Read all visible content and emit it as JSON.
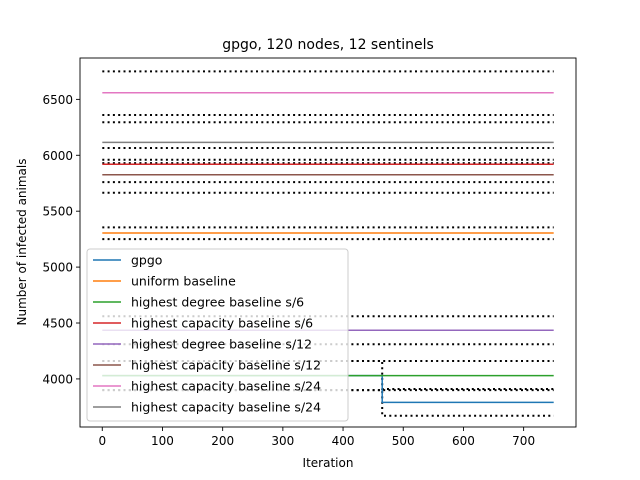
{
  "chart_data": {
    "type": "line",
    "title": "gpgo, 120 nodes, 12 sentinels",
    "xlabel": "Iteration",
    "ylabel": "Number of infected animals",
    "xlim": [
      -37,
      787
    ],
    "ylim": [
      3570,
      6870
    ],
    "xticks": [
      0,
      100,
      200,
      300,
      400,
      500,
      600,
      700
    ],
    "yticks": [
      4000,
      4500,
      5000,
      5500,
      6000,
      6500
    ],
    "grid": false,
    "legend_position": "lower-left",
    "series": [
      {
        "name": "gpgo",
        "color": "#1f77b4",
        "x": [
          0,
          465,
          465,
          750
        ],
        "y": [
          4030,
          4030,
          3790,
          3790
        ],
        "band": {
          "x": [
            0,
            465,
            465,
            750
          ],
          "upper": [
            4160,
            4160,
            3910,
            3910
          ],
          "lower": [
            3900,
            3900,
            3670,
            3670
          ]
        }
      },
      {
        "name": "uniform baseline",
        "color": "#ff7f0e",
        "x": [
          0,
          750
        ],
        "y": [
          5305,
          5305
        ],
        "band": {
          "x": [
            0,
            750
          ],
          "upper": [
            5355,
            5355
          ],
          "lower": [
            5250,
            5250
          ]
        }
      },
      {
        "name": "highest degree baseline s/6",
        "color": "#2ca02c",
        "x": [
          0,
          750
        ],
        "y": [
          4030,
          4030
        ],
        "band": {
          "x": [
            0,
            750
          ],
          "upper": [
            4160,
            4160
          ],
          "lower": [
            3900,
            3900
          ]
        }
      },
      {
        "name": "highest capacity baseline s/6",
        "color": "#d62728",
        "x": [
          0,
          750
        ],
        "y": [
          5920,
          5920
        ],
        "band": {
          "x": [
            0,
            750
          ],
          "upper": [
            6065,
            6065
          ],
          "lower": [
            5760,
            5760
          ]
        }
      },
      {
        "name": "highest degree baseline s/12",
        "color": "#9467bd",
        "x": [
          0,
          750
        ],
        "y": [
          4435,
          4435
        ],
        "band": {
          "x": [
            0,
            750
          ],
          "upper": [
            4560,
            4560
          ],
          "lower": [
            4310,
            4310
          ]
        }
      },
      {
        "name": "highest capacity baseline s/12",
        "color": "#8c564b",
        "x": [
          0,
          750
        ],
        "y": [
          5825,
          5825
        ],
        "band": {
          "x": [
            0,
            750
          ],
          "upper": [
            5960,
            5960
          ],
          "lower": [
            5665,
            5665
          ]
        }
      },
      {
        "name": "highest capacity baseline s/24",
        "color": "#e377c2",
        "x": [
          0,
          750
        ],
        "y": [
          6560,
          6560
        ],
        "band": {
          "x": [
            0,
            750
          ],
          "upper": [
            6750,
            6750
          ],
          "lower": [
            6360,
            6360
          ]
        }
      },
      {
        "name": "highest capacity baseline s/24",
        "color": "#7f7f7f",
        "x": [
          0,
          750
        ],
        "y": [
          6115,
          6115
        ],
        "band": {
          "x": [
            0,
            750
          ],
          "upper": [
            6295,
            6295
          ],
          "lower": [
            5930,
            5930
          ]
        }
      }
    ]
  }
}
